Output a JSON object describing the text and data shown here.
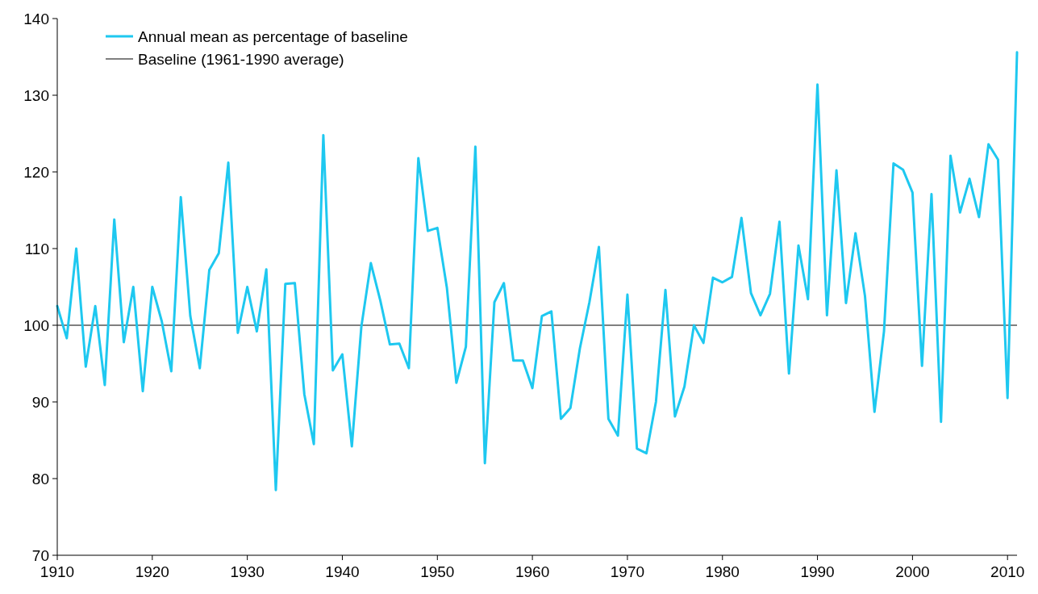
{
  "chart_data": {
    "type": "line",
    "x": [
      1910,
      1911,
      1912,
      1913,
      1914,
      1915,
      1916,
      1917,
      1918,
      1919,
      1920,
      1921,
      1922,
      1923,
      1924,
      1925,
      1926,
      1927,
      1928,
      1929,
      1930,
      1931,
      1932,
      1933,
      1934,
      1935,
      1936,
      1937,
      1938,
      1939,
      1940,
      1941,
      1942,
      1943,
      1944,
      1945,
      1946,
      1947,
      1948,
      1949,
      1950,
      1951,
      1952,
      1953,
      1954,
      1955,
      1956,
      1957,
      1958,
      1959,
      1960,
      1961,
      1962,
      1963,
      1964,
      1965,
      1966,
      1967,
      1968,
      1969,
      1970,
      1971,
      1972,
      1973,
      1974,
      1975,
      1976,
      1977,
      1978,
      1979,
      1980,
      1981,
      1982,
      1983,
      1984,
      1985,
      1986,
      1987,
      1988,
      1989,
      1990,
      1991,
      1992,
      1993,
      1994,
      1995,
      1996,
      1997,
      1998,
      1999,
      2000,
      2001,
      2002,
      2003,
      2004,
      2005,
      2006,
      2007,
      2008,
      2009,
      2010,
      2011
    ],
    "series": [
      {
        "name": "Annual mean as percentage of baseline",
        "color": "#1ec8f0",
        "values": [
          102.5,
          98.3,
          110,
          94.6,
          102.5,
          92.2,
          113.8,
          97.8,
          105,
          91.4,
          105,
          100.5,
          94,
          116.7,
          101.2,
          94.4,
          107.2,
          109.4,
          121.2,
          99,
          105,
          99.2,
          107.3,
          78.5,
          105.4,
          105.5,
          91,
          84.5,
          124.8,
          94.1,
          96.2,
          84.2,
          99.8,
          108.1,
          103.2,
          97.5,
          97.6,
          94.4,
          121.8,
          112.3,
          112.7,
          104.9,
          92.5,
          97.2,
          123.3,
          82,
          103,
          105.5,
          95.4,
          95.4,
          91.8,
          101.2,
          101.8,
          87.8,
          89.2,
          97,
          103,
          110.2,
          87.8,
          85.6,
          104,
          83.9,
          83.3,
          90,
          104.6,
          88.1,
          92,
          100,
          97.7,
          106.2,
          105.6,
          106.3,
          114,
          104.2,
          101.3,
          104.1,
          113.5,
          93.7,
          110.4,
          103.4,
          131.4,
          101.3,
          120.2,
          102.9,
          112,
          103.8,
          88.7,
          99.2,
          121.1,
          120.3,
          117.3,
          94.7,
          117.1,
          87.4,
          122.1,
          114.7,
          119.1,
          114.1,
          123.6,
          121.6,
          90.5,
          135.6
        ]
      }
    ],
    "ref_lines": [
      {
        "axis": "y",
        "value": 100,
        "label": "Baseline (1961-1990 average)",
        "color": "#000000"
      }
    ],
    "xlim": [
      1910,
      2011
    ],
    "xticks": [
      1910,
      1920,
      1930,
      1940,
      1950,
      1960,
      1970,
      1980,
      1990,
      2000,
      2010
    ],
    "ylim": [
      70,
      140
    ],
    "yticks": [
      70,
      80,
      90,
      100,
      110,
      120,
      130,
      140
    ],
    "grid": false,
    "legend": "top left",
    "marker": "none",
    "line_style": "solid"
  }
}
